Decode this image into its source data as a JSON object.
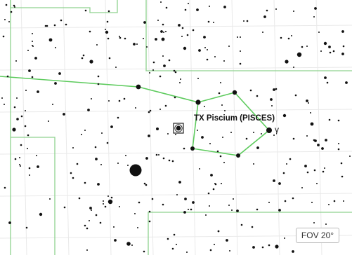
{
  "target": {
    "label": "TX Piscium (PISCES)",
    "marker_icon": "target-reticle-icon"
  },
  "star_labels": {
    "gamma": "γ"
  },
  "fov": {
    "label": "FOV 20°"
  },
  "colors": {
    "background": "#ffffff",
    "stars": "#111111",
    "constellation_lines": "#5ecb5e",
    "constellation_boundaries": "#8fd28f",
    "grid": "#e9e9e9"
  }
}
